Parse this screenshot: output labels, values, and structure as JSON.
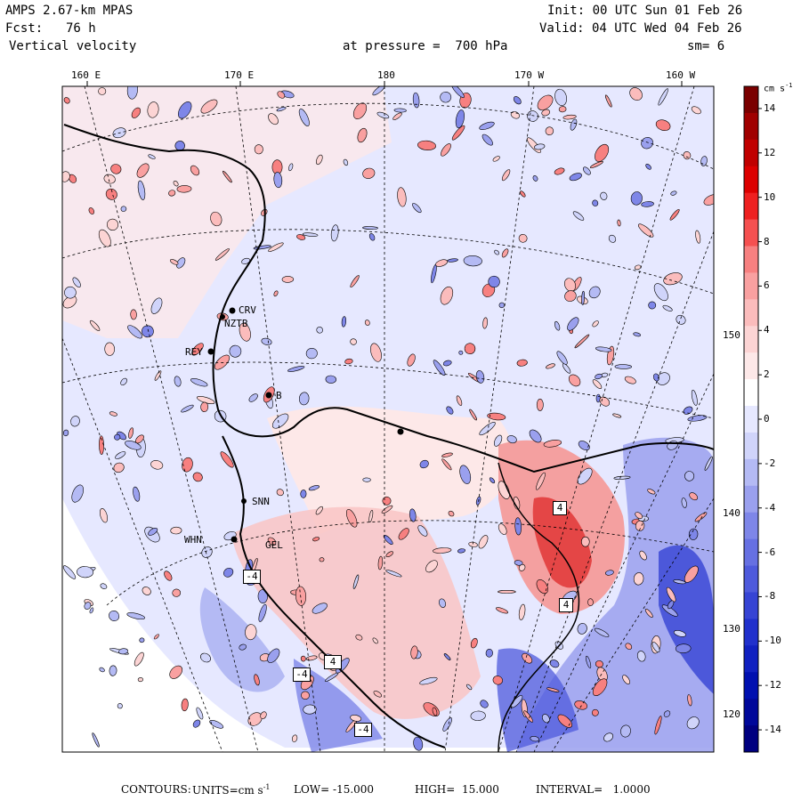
{
  "header": {
    "model": "AMPS 2.67-km MPAS",
    "init": "Init: 00 UTC Sun 01 Feb 26",
    "fcst_label": "Fcst:",
    "fcst_value": "76 h",
    "valid": "Valid: 04 UTC Wed 04 Feb 26",
    "field": "Vertical velocity",
    "level": "at pressure =  700 hPa",
    "smoothing": "sm= 6"
  },
  "map": {
    "top_lon_labels": [
      "160 E",
      "170 E",
      "180",
      "170 W",
      "160 W"
    ],
    "right_lat_labels": [
      "150 W",
      "140 W",
      "130 W",
      "120 W"
    ],
    "stations": [
      {
        "name": "CRV",
        "kind": "dot"
      },
      {
        "name": "NZTB",
        "kind": "dot"
      },
      {
        "name": "REY",
        "kind": "dot"
      },
      {
        "name": "B",
        "kind": "dot"
      },
      {
        "name": "SNN",
        "kind": "dot"
      },
      {
        "name": "WHN",
        "kind": "dot"
      },
      {
        "name": "GEL",
        "kind": "dot"
      }
    ],
    "extrema_labels": [
      "-4",
      "4",
      "4",
      "-4",
      "4",
      "-4"
    ],
    "colors": {
      "water_blue": "#e6e8ff",
      "land_pink": "#fde8e8",
      "land_white": "#ffffff",
      "coast": "#000000"
    }
  },
  "colorbar": {
    "unit": "cm s",
    "unit_sup": "-1",
    "tick_labels": [
      "14",
      "12",
      "10",
      "8",
      "6",
      "4",
      "2",
      "0",
      "-2",
      "-4",
      "-6",
      "-8",
      "-10",
      "-12",
      "-14"
    ],
    "ticks": [
      14,
      12,
      10,
      8,
      6,
      4,
      2,
      0,
      -2,
      -4,
      -6,
      -8,
      -10,
      -12,
      -14
    ],
    "range": [
      -15,
      15
    ],
    "colors_top_to_bottom": [
      "#7a0000",
      "#a00000",
      "#c00000",
      "#dc0000",
      "#ee2020",
      "#f55050",
      "#f78080",
      "#f9a0a0",
      "#fbbcbc",
      "#fcd4d4",
      "#fde8e8",
      "#ffffff",
      "#e6e8ff",
      "#d0d4fa",
      "#b4baf4",
      "#9aa0ee",
      "#7e86e8",
      "#6670e2",
      "#4e5adc",
      "#3644d4",
      "#2030cc",
      "#1020c0",
      "#0010b0",
      "#00089a",
      "#000080"
    ]
  },
  "footer": {
    "contours": "CONTOURS:",
    "units_label": "UNITS=cm s",
    "units_sup": "-1",
    "low": "LOW= -15.000",
    "high": "HIGH=  15.000",
    "interval": "INTERVAL=   1.0000"
  }
}
